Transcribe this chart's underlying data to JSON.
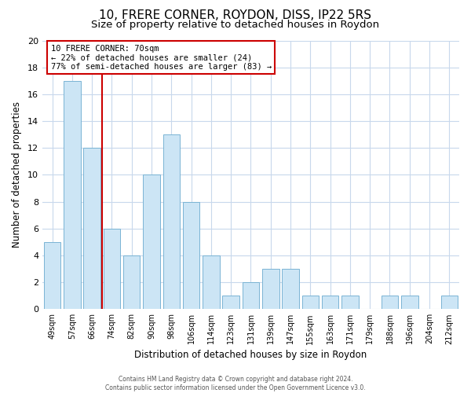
{
  "title": "10, FRERE CORNER, ROYDON, DISS, IP22 5RS",
  "subtitle": "Size of property relative to detached houses in Roydon",
  "xlabel": "Distribution of detached houses by size in Roydon",
  "ylabel": "Number of detached properties",
  "bar_labels": [
    "49sqm",
    "57sqm",
    "66sqm",
    "74sqm",
    "82sqm",
    "90sqm",
    "98sqm",
    "106sqm",
    "114sqm",
    "123sqm",
    "131sqm",
    "139sqm",
    "147sqm",
    "155sqm",
    "163sqm",
    "171sqm",
    "179sqm",
    "188sqm",
    "196sqm",
    "204sqm",
    "212sqm"
  ],
  "bar_values": [
    5,
    17,
    12,
    6,
    4,
    10,
    13,
    8,
    4,
    1,
    2,
    3,
    3,
    1,
    1,
    1,
    0,
    1,
    1,
    0,
    1
  ],
  "bar_color": "#cce5f5",
  "bar_edge_color": "#7ab4d4",
  "vline_x_idx": 2,
  "vline_color": "#cc0000",
  "ylim": [
    0,
    20
  ],
  "yticks": [
    0,
    2,
    4,
    6,
    8,
    10,
    12,
    14,
    16,
    18,
    20
  ],
  "annotation_box_text": "10 FRERE CORNER: 70sqm\n← 22% of detached houses are smaller (24)\n77% of semi-detached houses are larger (83) →",
  "footer1": "Contains HM Land Registry data © Crown copyright and database right 2024.",
  "footer2": "Contains public sector information licensed under the Open Government Licence v3.0.",
  "title_fontsize": 11,
  "subtitle_fontsize": 9.5,
  "background_color": "#ffffff",
  "grid_color": "#c8d8ec"
}
